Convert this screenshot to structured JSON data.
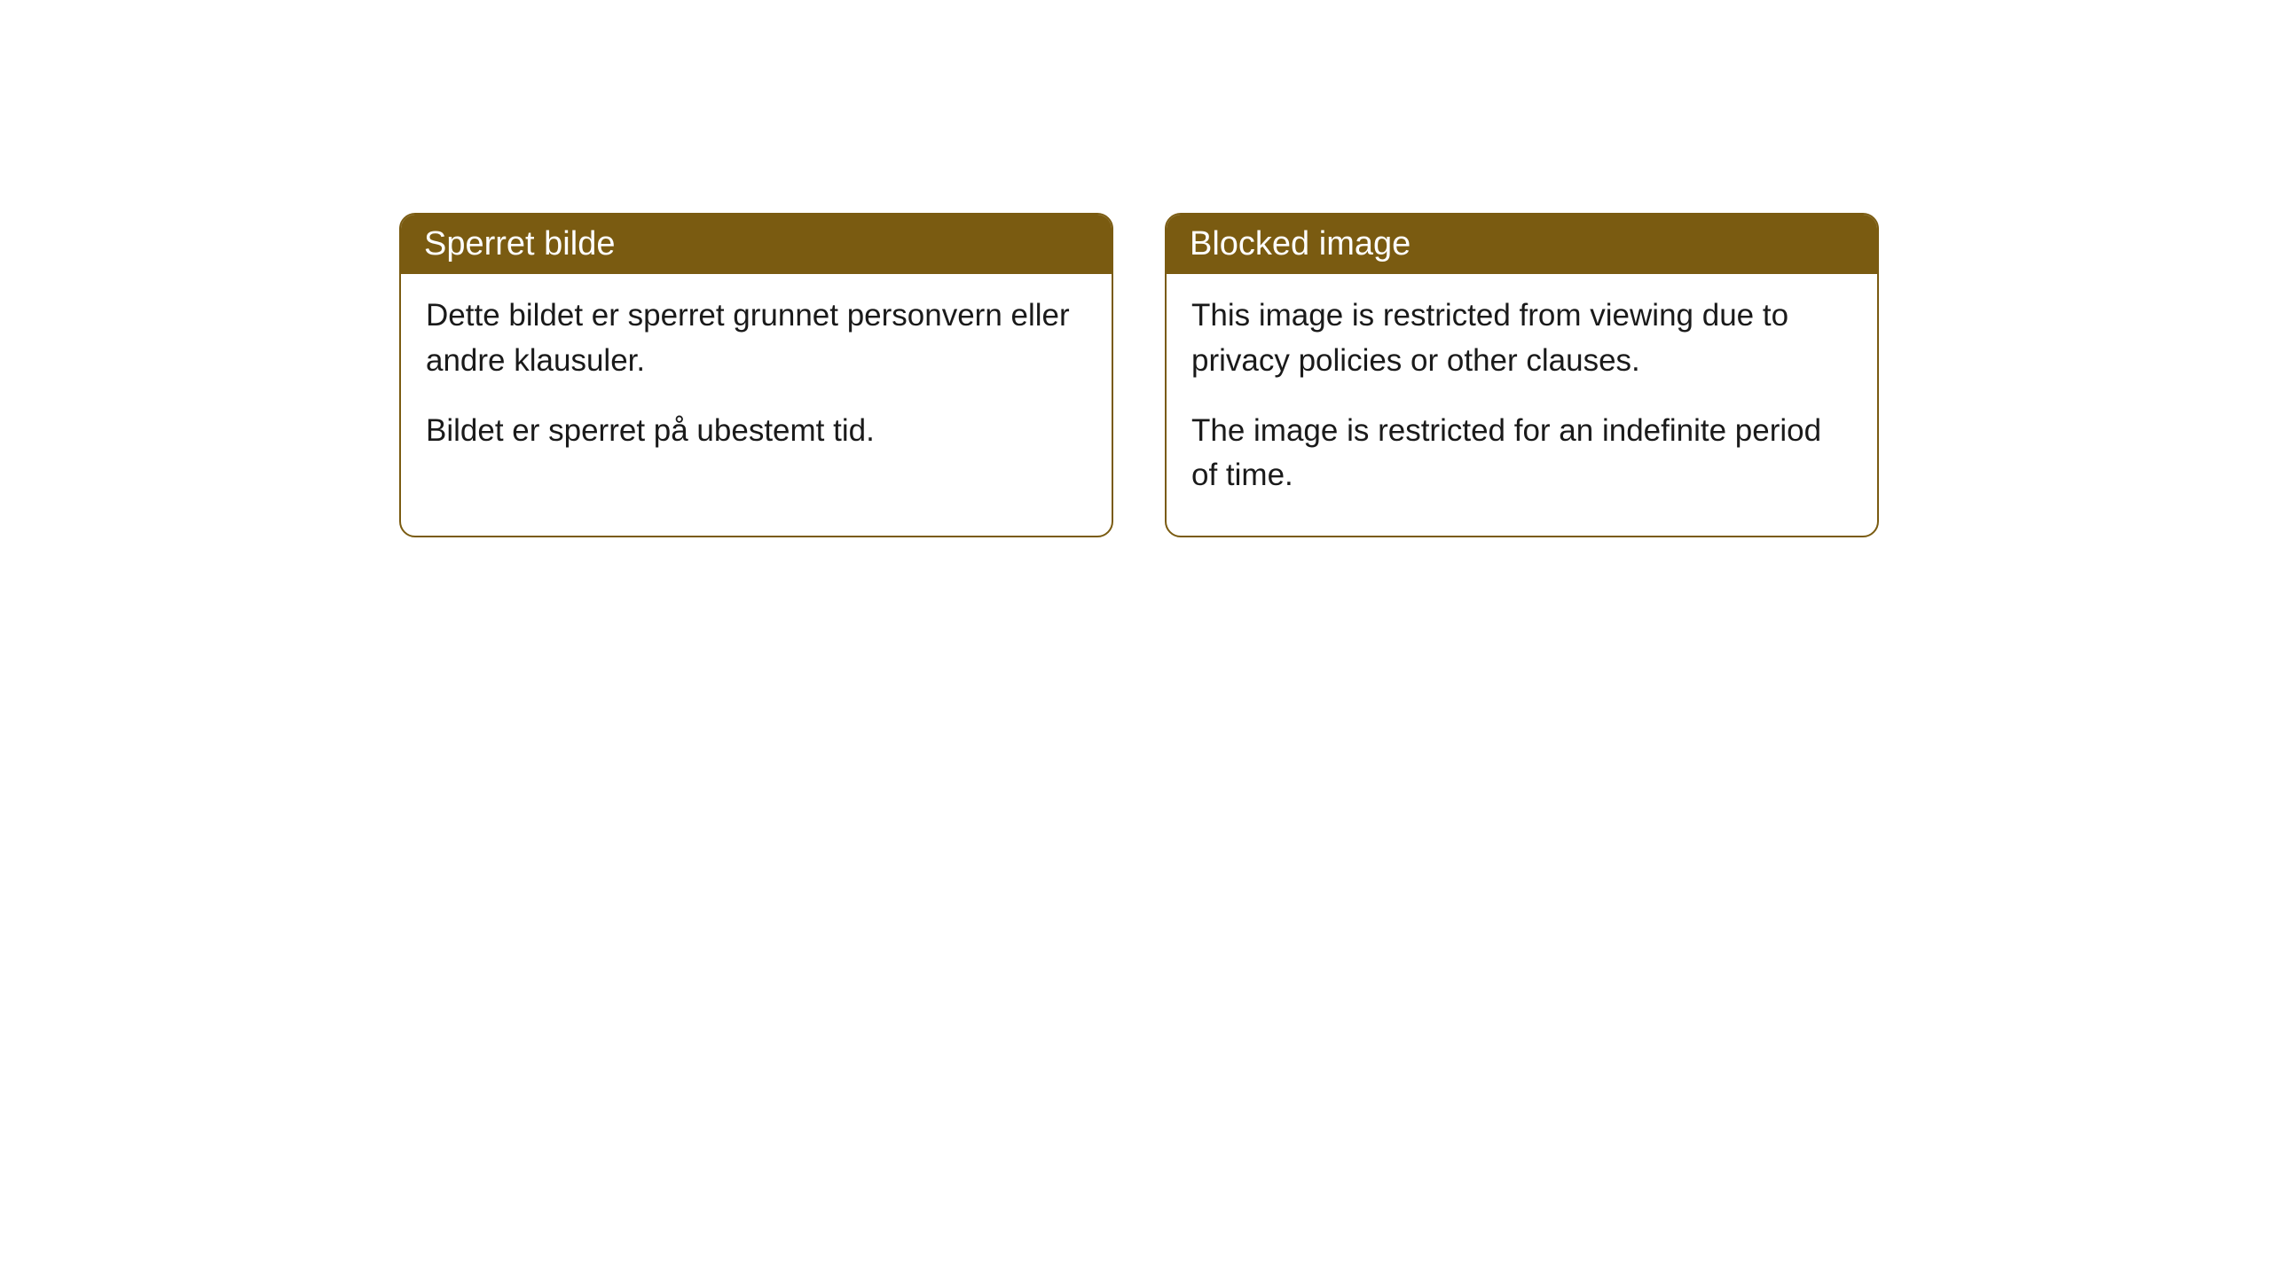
{
  "cards": [
    {
      "title": "Sperret bilde",
      "paragraph1": "Dette bildet er sperret grunnet personvern eller andre klausuler.",
      "paragraph2": "Bildet er sperret på ubestemt tid."
    },
    {
      "title": "Blocked image",
      "paragraph1": "This image is restricted from viewing due to privacy policies or other clauses.",
      "paragraph2": "The image is restricted for an indefinite period of time."
    }
  ],
  "style": {
    "header_bg_color": "#7a5b11",
    "header_text_color": "#ffffff",
    "border_color": "#7a5b11",
    "body_bg_color": "#ffffff",
    "body_text_color": "#1a1a1a",
    "page_bg_color": "#ffffff",
    "border_radius": 18,
    "title_fontsize": 38,
    "body_fontsize": 35
  }
}
